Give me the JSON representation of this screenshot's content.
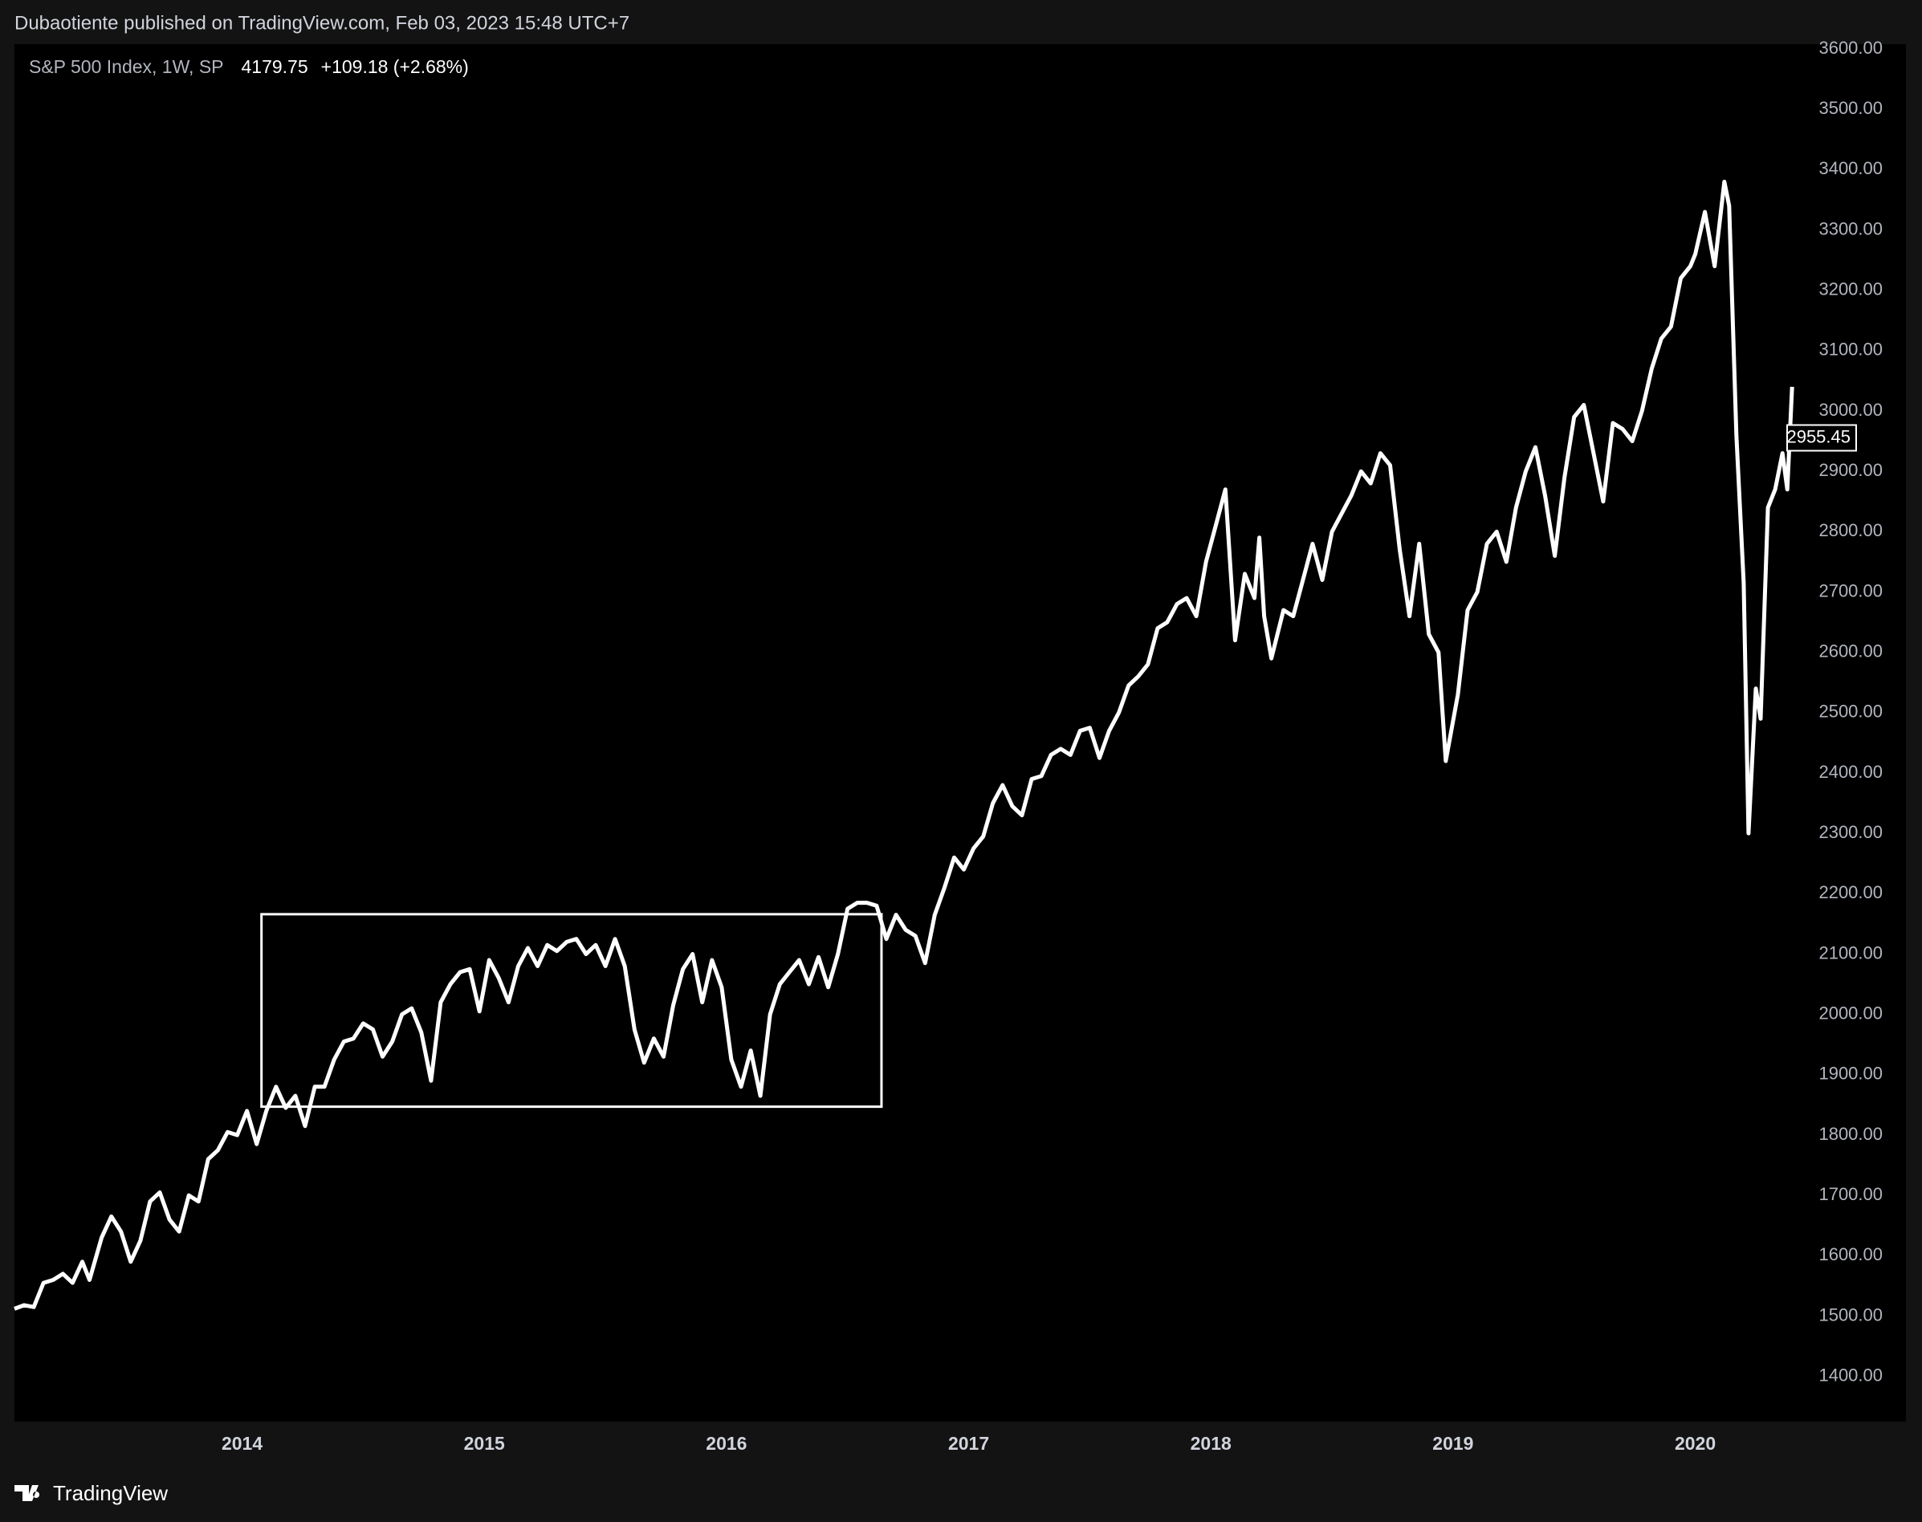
{
  "chart_data": {
    "type": "line",
    "header": "Dubaotiente published on TradingView.com, Feb 03, 2023 15:48 UTC+7",
    "title": "S&P 500 Index, 1W, SP",
    "last": "4179.75",
    "change": "+109.18 (+2.68%)",
    "brand": "TradingView",
    "color": "#ffffff",
    "grid": false,
    "xlim": [
      2013.06,
      2020.87
    ],
    "ylim": [
      1325,
      3608
    ],
    "xticks": [
      2014,
      2015,
      2016,
      2017,
      2018,
      2019,
      2020
    ],
    "yticks": [
      {
        "value": 1400,
        "label": "1400.00"
      },
      {
        "value": 1500,
        "label": "1500.00"
      },
      {
        "value": 1600,
        "label": "1600.00"
      },
      {
        "value": 1700,
        "label": "1700.00"
      },
      {
        "value": 1800,
        "label": "1800.00"
      },
      {
        "value": 1900,
        "label": "1900.00"
      },
      {
        "value": 2000,
        "label": "2000.00"
      },
      {
        "value": 2100,
        "label": "2100.00"
      },
      {
        "value": 2200,
        "label": "2200.00"
      },
      {
        "value": 2300,
        "label": "2300.00"
      },
      {
        "value": 2400,
        "label": "2400.00"
      },
      {
        "value": 2500,
        "label": "2500.00"
      },
      {
        "value": 2600,
        "label": "2600.00"
      },
      {
        "value": 2700,
        "label": "2700.00"
      },
      {
        "value": 2800,
        "label": "2800.00"
      },
      {
        "value": 2900,
        "label": "2900.00"
      },
      {
        "value": 3000,
        "label": "3000.00"
      },
      {
        "value": 3100,
        "label": "3100.00"
      },
      {
        "value": 3200,
        "label": "3200.00"
      },
      {
        "value": 3300,
        "label": "3300.00"
      },
      {
        "value": 3400,
        "label": "3400.00"
      },
      {
        "value": 3500,
        "label": "3500.00"
      },
      {
        "value": 3600,
        "label": "3600.00"
      }
    ],
    "price_marker": {
      "value": 2955.45,
      "label": "2955.45"
    },
    "box": {
      "x": [
        2014.08,
        2016.64
      ],
      "y": [
        1847,
        2166
      ]
    },
    "x": [
      2013.06,
      2013.1,
      2013.14,
      2013.18,
      2013.22,
      2013.26,
      2013.3,
      2013.34,
      2013.37,
      2013.42,
      2013.46,
      2013.5,
      2013.54,
      2013.58,
      2013.62,
      2013.66,
      2013.7,
      2013.74,
      2013.78,
      2013.82,
      2013.86,
      2013.9,
      2013.94,
      2013.98,
      2014.02,
      2014.06,
      2014.1,
      2014.14,
      2014.18,
      2014.22,
      2014.26,
      2014.3,
      2014.34,
      2014.38,
      2014.42,
      2014.46,
      2014.5,
      2014.54,
      2014.58,
      2014.62,
      2014.66,
      2014.7,
      2014.74,
      2014.78,
      2014.82,
      2014.86,
      2014.9,
      2014.94,
      2014.98,
      2015.02,
      2015.06,
      2015.1,
      2015.14,
      2015.18,
      2015.22,
      2015.26,
      2015.3,
      2015.34,
      2015.38,
      2015.42,
      2015.46,
      2015.5,
      2015.54,
      2015.58,
      2015.62,
      2015.66,
      2015.7,
      2015.74,
      2015.78,
      2015.82,
      2015.86,
      2015.9,
      2015.94,
      2015.98,
      2016.02,
      2016.06,
      2016.1,
      2016.14,
      2016.18,
      2016.22,
      2016.26,
      2016.3,
      2016.34,
      2016.38,
      2016.42,
      2016.46,
      2016.5,
      2016.54,
      2016.58,
      2016.62,
      2016.66,
      2016.7,
      2016.74,
      2016.78,
      2016.82,
      2016.86,
      2016.9,
      2016.94,
      2016.98,
      2017.02,
      2017.06,
      2017.1,
      2017.14,
      2017.18,
      2017.22,
      2017.26,
      2017.3,
      2017.34,
      2017.38,
      2017.42,
      2017.46,
      2017.5,
      2017.54,
      2017.58,
      2017.62,
      2017.66,
      2017.7,
      2017.74,
      2017.78,
      2017.82,
      2017.86,
      2017.9,
      2017.94,
      2017.98,
      2018.02,
      2018.06,
      2018.1,
      2018.14,
      2018.18,
      2018.2,
      2018.22,
      2018.25,
      2018.3,
      2018.34,
      2018.38,
      2018.42,
      2018.46,
      2018.5,
      2018.54,
      2018.58,
      2018.62,
      2018.66,
      2018.7,
      2018.74,
      2018.78,
      2018.82,
      2018.86,
      2018.9,
      2018.94,
      2018.97,
      2019.02,
      2019.06,
      2019.1,
      2019.14,
      2019.18,
      2019.22,
      2019.26,
      2019.3,
      2019.34,
      2019.38,
      2019.42,
      2019.46,
      2019.5,
      2019.54,
      2019.58,
      2019.62,
      2019.66,
      2019.7,
      2019.74,
      2019.78,
      2019.82,
      2019.86,
      2019.9,
      2019.94,
      2019.98,
      2020.0,
      2020.04,
      2020.08,
      2020.12,
      2020.14,
      2020.17,
      2020.2,
      2020.22,
      2020.25,
      2020.27,
      2020.3,
      2020.33,
      2020.36,
      2020.38,
      2020.4
    ],
    "values": [
      1512,
      1518,
      1515,
      1555,
      1560,
      1570,
      1555,
      1590,
      1560,
      1630,
      1665,
      1640,
      1590,
      1625,
      1690,
      1705,
      1660,
      1640,
      1700,
      1690,
      1760,
      1775,
      1805,
      1800,
      1840,
      1785,
      1840,
      1880,
      1845,
      1865,
      1815,
      1880,
      1880,
      1925,
      1955,
      1960,
      1985,
      1975,
      1930,
      1955,
      2000,
      2010,
      1970,
      1890,
      2020,
      2050,
      2070,
      2075,
      2005,
      2090,
      2060,
      2020,
      2080,
      2110,
      2080,
      2115,
      2105,
      2120,
      2125,
      2100,
      2115,
      2080,
      2125,
      2080,
      1975,
      1920,
      1960,
      1930,
      2015,
      2075,
      2100,
      2020,
      2090,
      2045,
      1925,
      1880,
      1940,
      1865,
      2000,
      2050,
      2070,
      2090,
      2050,
      2095,
      2045,
      2100,
      2175,
      2185,
      2185,
      2180,
      2125,
      2165,
      2140,
      2130,
      2085,
      2165,
      2210,
      2260,
      2240,
      2275,
      2295,
      2350,
      2380,
      2345,
      2330,
      2390,
      2395,
      2430,
      2440,
      2430,
      2470,
      2475,
      2425,
      2470,
      2500,
      2545,
      2560,
      2580,
      2640,
      2650,
      2680,
      2690,
      2660,
      2750,
      2810,
      2870,
      2620,
      2730,
      2690,
      2790,
      2660,
      2590,
      2670,
      2660,
      2720,
      2780,
      2720,
      2800,
      2830,
      2860,
      2900,
      2880,
      2930,
      2910,
      2770,
      2660,
      2780,
      2630,
      2600,
      2420,
      2530,
      2670,
      2700,
      2780,
      2800,
      2750,
      2840,
      2900,
      2940,
      2860,
      2760,
      2890,
      2990,
      3010,
      2930,
      2850,
      2980,
      2970,
      2950,
      3000,
      3070,
      3120,
      3140,
      3220,
      3240,
      3260,
      3330,
      3240,
      3380,
      3340,
      2960,
      2715,
      2300,
      2540,
      2490,
      2840,
      2870,
      2930,
      2870,
      3040
    ]
  }
}
